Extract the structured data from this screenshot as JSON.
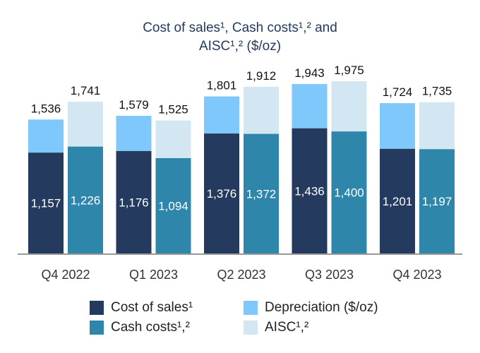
{
  "chart_data": {
    "type": "bar",
    "title_line1": "Cost of sales¹, Cash costs¹,² and",
    "title_line2": "AISC¹,² ($/oz)",
    "categories": [
      "Q4 2022",
      "Q1 2023",
      "Q2 2023",
      "Q3 2023",
      "Q4 2023"
    ],
    "stacked_groups": true,
    "ylim": [
      0,
      2000
    ],
    "grid": false,
    "legend_placement": "bottom",
    "series": [
      {
        "name": "Cost of sales¹",
        "stack": "left",
        "values": [
          1157,
          1176,
          1376,
          1436,
          1201
        ],
        "color": "#243a5e"
      },
      {
        "name": "Depreciation ($/oz)",
        "stack": "left",
        "values": [
          379,
          403,
          425,
          507,
          523
        ],
        "color": "#7fc8fb"
      },
      {
        "name": "Cash costs¹,²",
        "stack": "right",
        "values": [
          1226,
          1094,
          1372,
          1400,
          1197
        ],
        "color": "#2e86ab"
      },
      {
        "name": "AISC¹,²",
        "stack": "right",
        "values": [
          515,
          431,
          540,
          575,
          538
        ],
        "color": "#d3e7f2"
      }
    ],
    "left_totals": [
      "1,536",
      "1,579",
      "1,801",
      "1,943",
      "1,724"
    ],
    "right_totals": [
      "1,741",
      "1,525",
      "1,912",
      "1,975",
      "1,735"
    ],
    "left_inner": [
      "1,157",
      "1,176",
      "1,376",
      "1,436",
      "1,201"
    ],
    "right_inner": [
      "1,226",
      "1,094",
      "1,372",
      "1,400",
      "1,197"
    ]
  }
}
